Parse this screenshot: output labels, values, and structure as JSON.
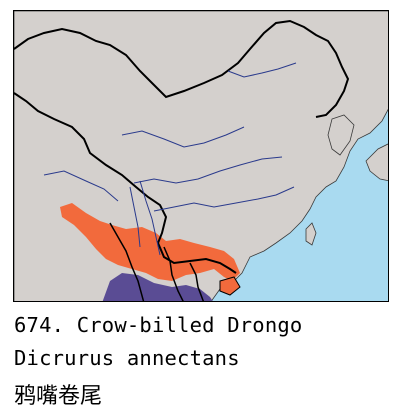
{
  "map": {
    "colors": {
      "sea": "#a9daf0",
      "land": "#d4d0cd",
      "breeding_range": "#f26a3c",
      "resident_range": "#5a4c94",
      "borders": "#000000",
      "rivers": "#2a3a8c"
    },
    "icons": [
      "range-map"
    ]
  },
  "caption": {
    "title": "674. Crow-billed Drongo",
    "scientific_name": "Dicrurus annectans",
    "chinese_name": "鸦嘴卷尾"
  }
}
